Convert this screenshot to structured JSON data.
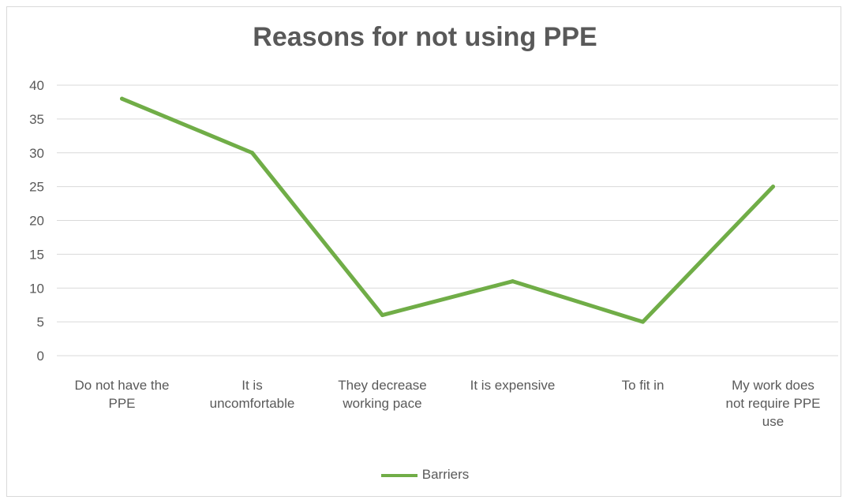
{
  "chart_data": {
    "type": "line",
    "title": "Reasons for not using PPE",
    "categories": [
      [
        "Do not have the",
        "PPE"
      ],
      [
        "It is",
        "uncomfortable"
      ],
      [
        "They decrease",
        "working pace"
      ],
      [
        "It is expensive"
      ],
      [
        "To fit in"
      ],
      [
        "My work does",
        "not require PPE",
        "use"
      ]
    ],
    "series": [
      {
        "name": "Barriers",
        "values": [
          38,
          30,
          6,
          11,
          5,
          25
        ],
        "color": "#70ad47"
      }
    ],
    "ylim": [
      0,
      40
    ],
    "yticks": [
      0,
      5,
      10,
      15,
      20,
      25,
      30,
      35,
      40
    ],
    "grid": true,
    "legend_position": "bottom"
  }
}
